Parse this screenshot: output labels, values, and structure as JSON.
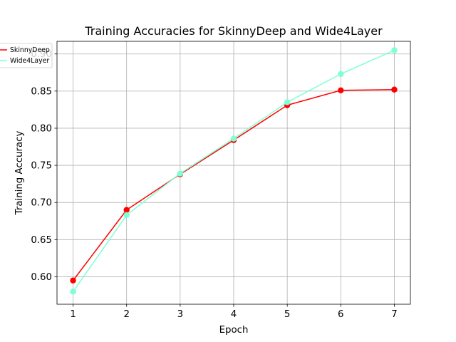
{
  "chart_data": {
    "type": "line",
    "title": "Training Accuracies for SkinnyDeep and Wide4Layer",
    "xlabel": "Epoch",
    "ylabel": "Training Accuracy",
    "x": [
      1,
      2,
      3,
      4,
      5,
      6,
      7
    ],
    "xlim": [
      0.7,
      7.3
    ],
    "ylim": [
      0.563,
      0.917
    ],
    "xticks": [
      1,
      2,
      3,
      4,
      5,
      6,
      7
    ],
    "yticks": [
      0.6,
      0.65,
      0.7,
      0.75,
      0.8,
      0.85,
      0.9
    ],
    "ytick_labels": [
      "0.60",
      "0.65",
      "0.70",
      "0.75",
      "0.80",
      "0.85",
      "0.90"
    ],
    "grid": true,
    "legend": "upper-left, partially outside the axes",
    "series": [
      {
        "name": "SkinnyDeep",
        "color": "#ff0000",
        "marker": "circle",
        "values": [
          0.595,
          0.69,
          0.738,
          0.784,
          0.831,
          0.851,
          0.852
        ]
      },
      {
        "name": "Wide4Layer",
        "color": "#7fffd4",
        "marker": "circle",
        "values": [
          0.58,
          0.683,
          0.739,
          0.786,
          0.835,
          0.873,
          0.905
        ]
      }
    ]
  }
}
